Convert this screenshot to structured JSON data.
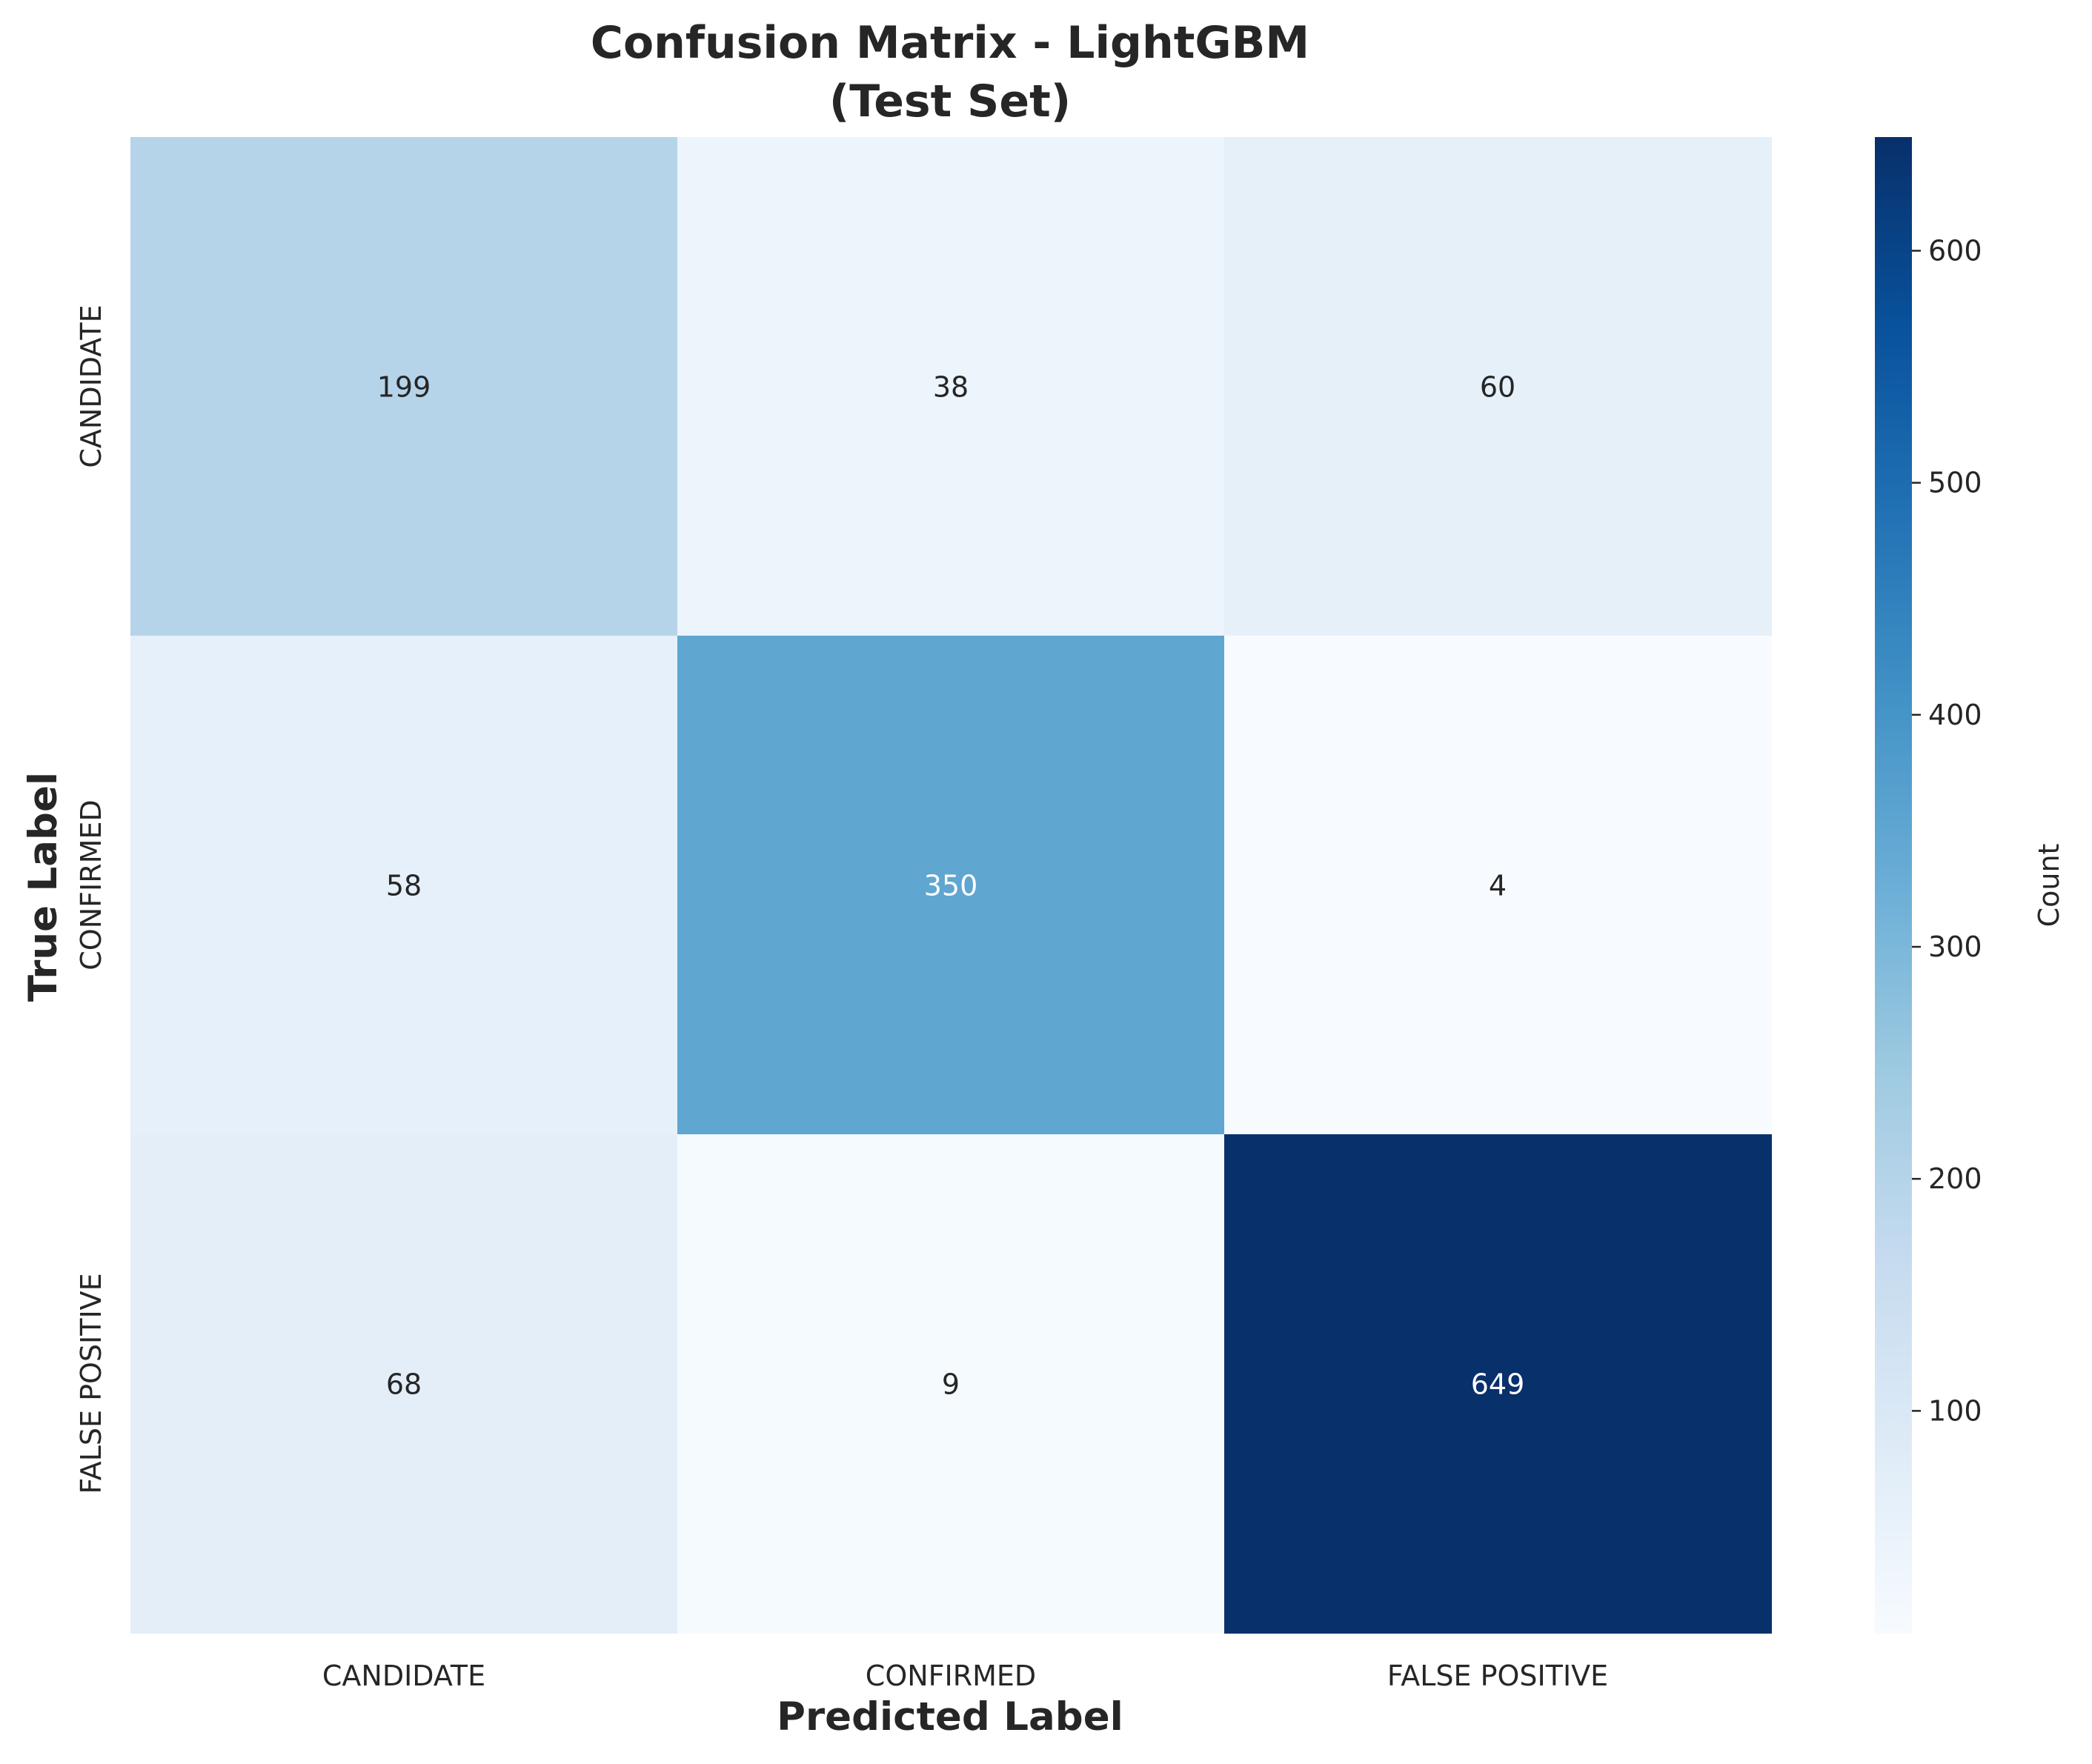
{
  "chart_data": {
    "type": "heatmap",
    "title": "Confusion Matrix - LightGBM",
    "subtitle": "(Test Set)",
    "xlabel": "Predicted Label",
    "ylabel": "True Label",
    "x_categories": [
      "CANDIDATE",
      "CONFIRMED",
      "FALSE POSITIVE"
    ],
    "y_categories": [
      "CANDIDATE",
      "CONFIRMED",
      "FALSE POSITIVE"
    ],
    "values": [
      [
        199,
        38,
        60
      ],
      [
        58,
        350,
        4
      ],
      [
        68,
        9,
        649
      ]
    ],
    "colormap": "Blues",
    "colorbar": {
      "label": "Count",
      "range": [
        4,
        649
      ],
      "ticks": [
        100,
        200,
        300,
        400,
        500,
        600
      ]
    }
  }
}
